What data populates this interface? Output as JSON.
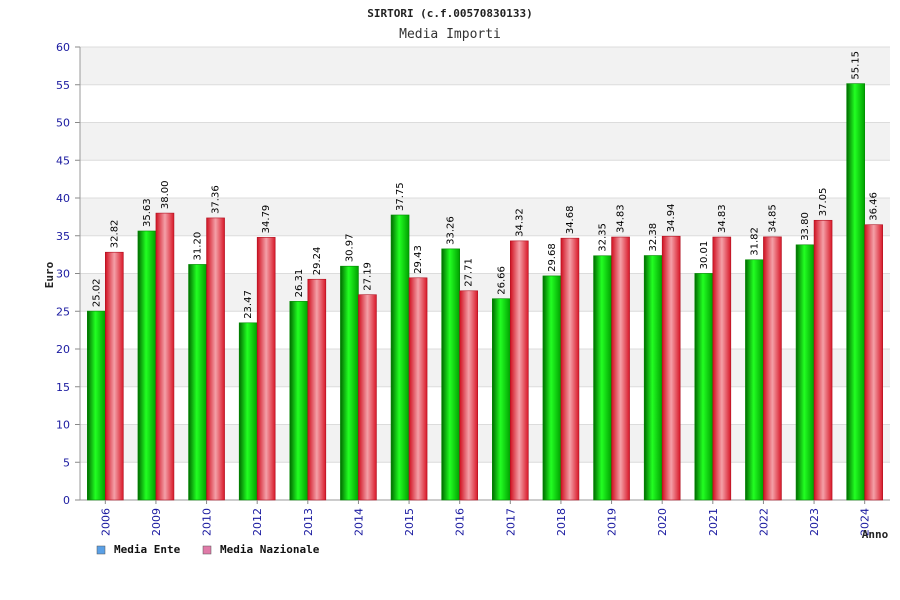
{
  "chart_data": {
    "type": "bar",
    "title": "SIRTORI (c.f.00570830133)",
    "subtitle": "Media Importi",
    "ylabel": "Euro",
    "xlabel": "Anno",
    "ylim": [
      0,
      60
    ],
    "ytick_step": 5,
    "grid": true,
    "legend_position": "bottom-left",
    "categories": [
      "2006",
      "2009",
      "2010",
      "2012",
      "2013",
      "2014",
      "2015",
      "2016",
      "2017",
      "2018",
      "2019",
      "2020",
      "2021",
      "2022",
      "2023",
      "2024"
    ],
    "series": [
      {
        "name": "Media Ente",
        "color": "#00c000",
        "legend_color": "#5aa0e6",
        "values": [
          25.02,
          35.63,
          31.2,
          23.47,
          26.31,
          30.97,
          37.75,
          33.26,
          26.66,
          29.68,
          32.35,
          32.38,
          30.01,
          31.82,
          33.8,
          55.15
        ],
        "labels": [
          "25.02",
          "35.63",
          "31.20",
          "23.47",
          "26.31",
          "30.97",
          "37.75",
          "33.26",
          "26.66",
          "29.68",
          "32.35",
          "32.38",
          "30.01",
          "31.82",
          "33.80",
          "55.15"
        ]
      },
      {
        "name": "Media Nazionale",
        "color": "#e0202a",
        "legend_color": "#e07aa8",
        "values": [
          32.82,
          38.0,
          37.36,
          34.79,
          29.24,
          27.19,
          29.43,
          27.71,
          34.32,
          34.68,
          34.83,
          34.94,
          34.83,
          34.85,
          37.05,
          36.46
        ],
        "labels": [
          "32.82",
          "38.00",
          "37.36",
          "34.79",
          "29.24",
          "27.19",
          "29.43",
          "27.71",
          "34.32",
          "34.68",
          "34.83",
          "34.94",
          "34.83",
          "34.85",
          "37.05",
          "36.46"
        ]
      }
    ]
  }
}
